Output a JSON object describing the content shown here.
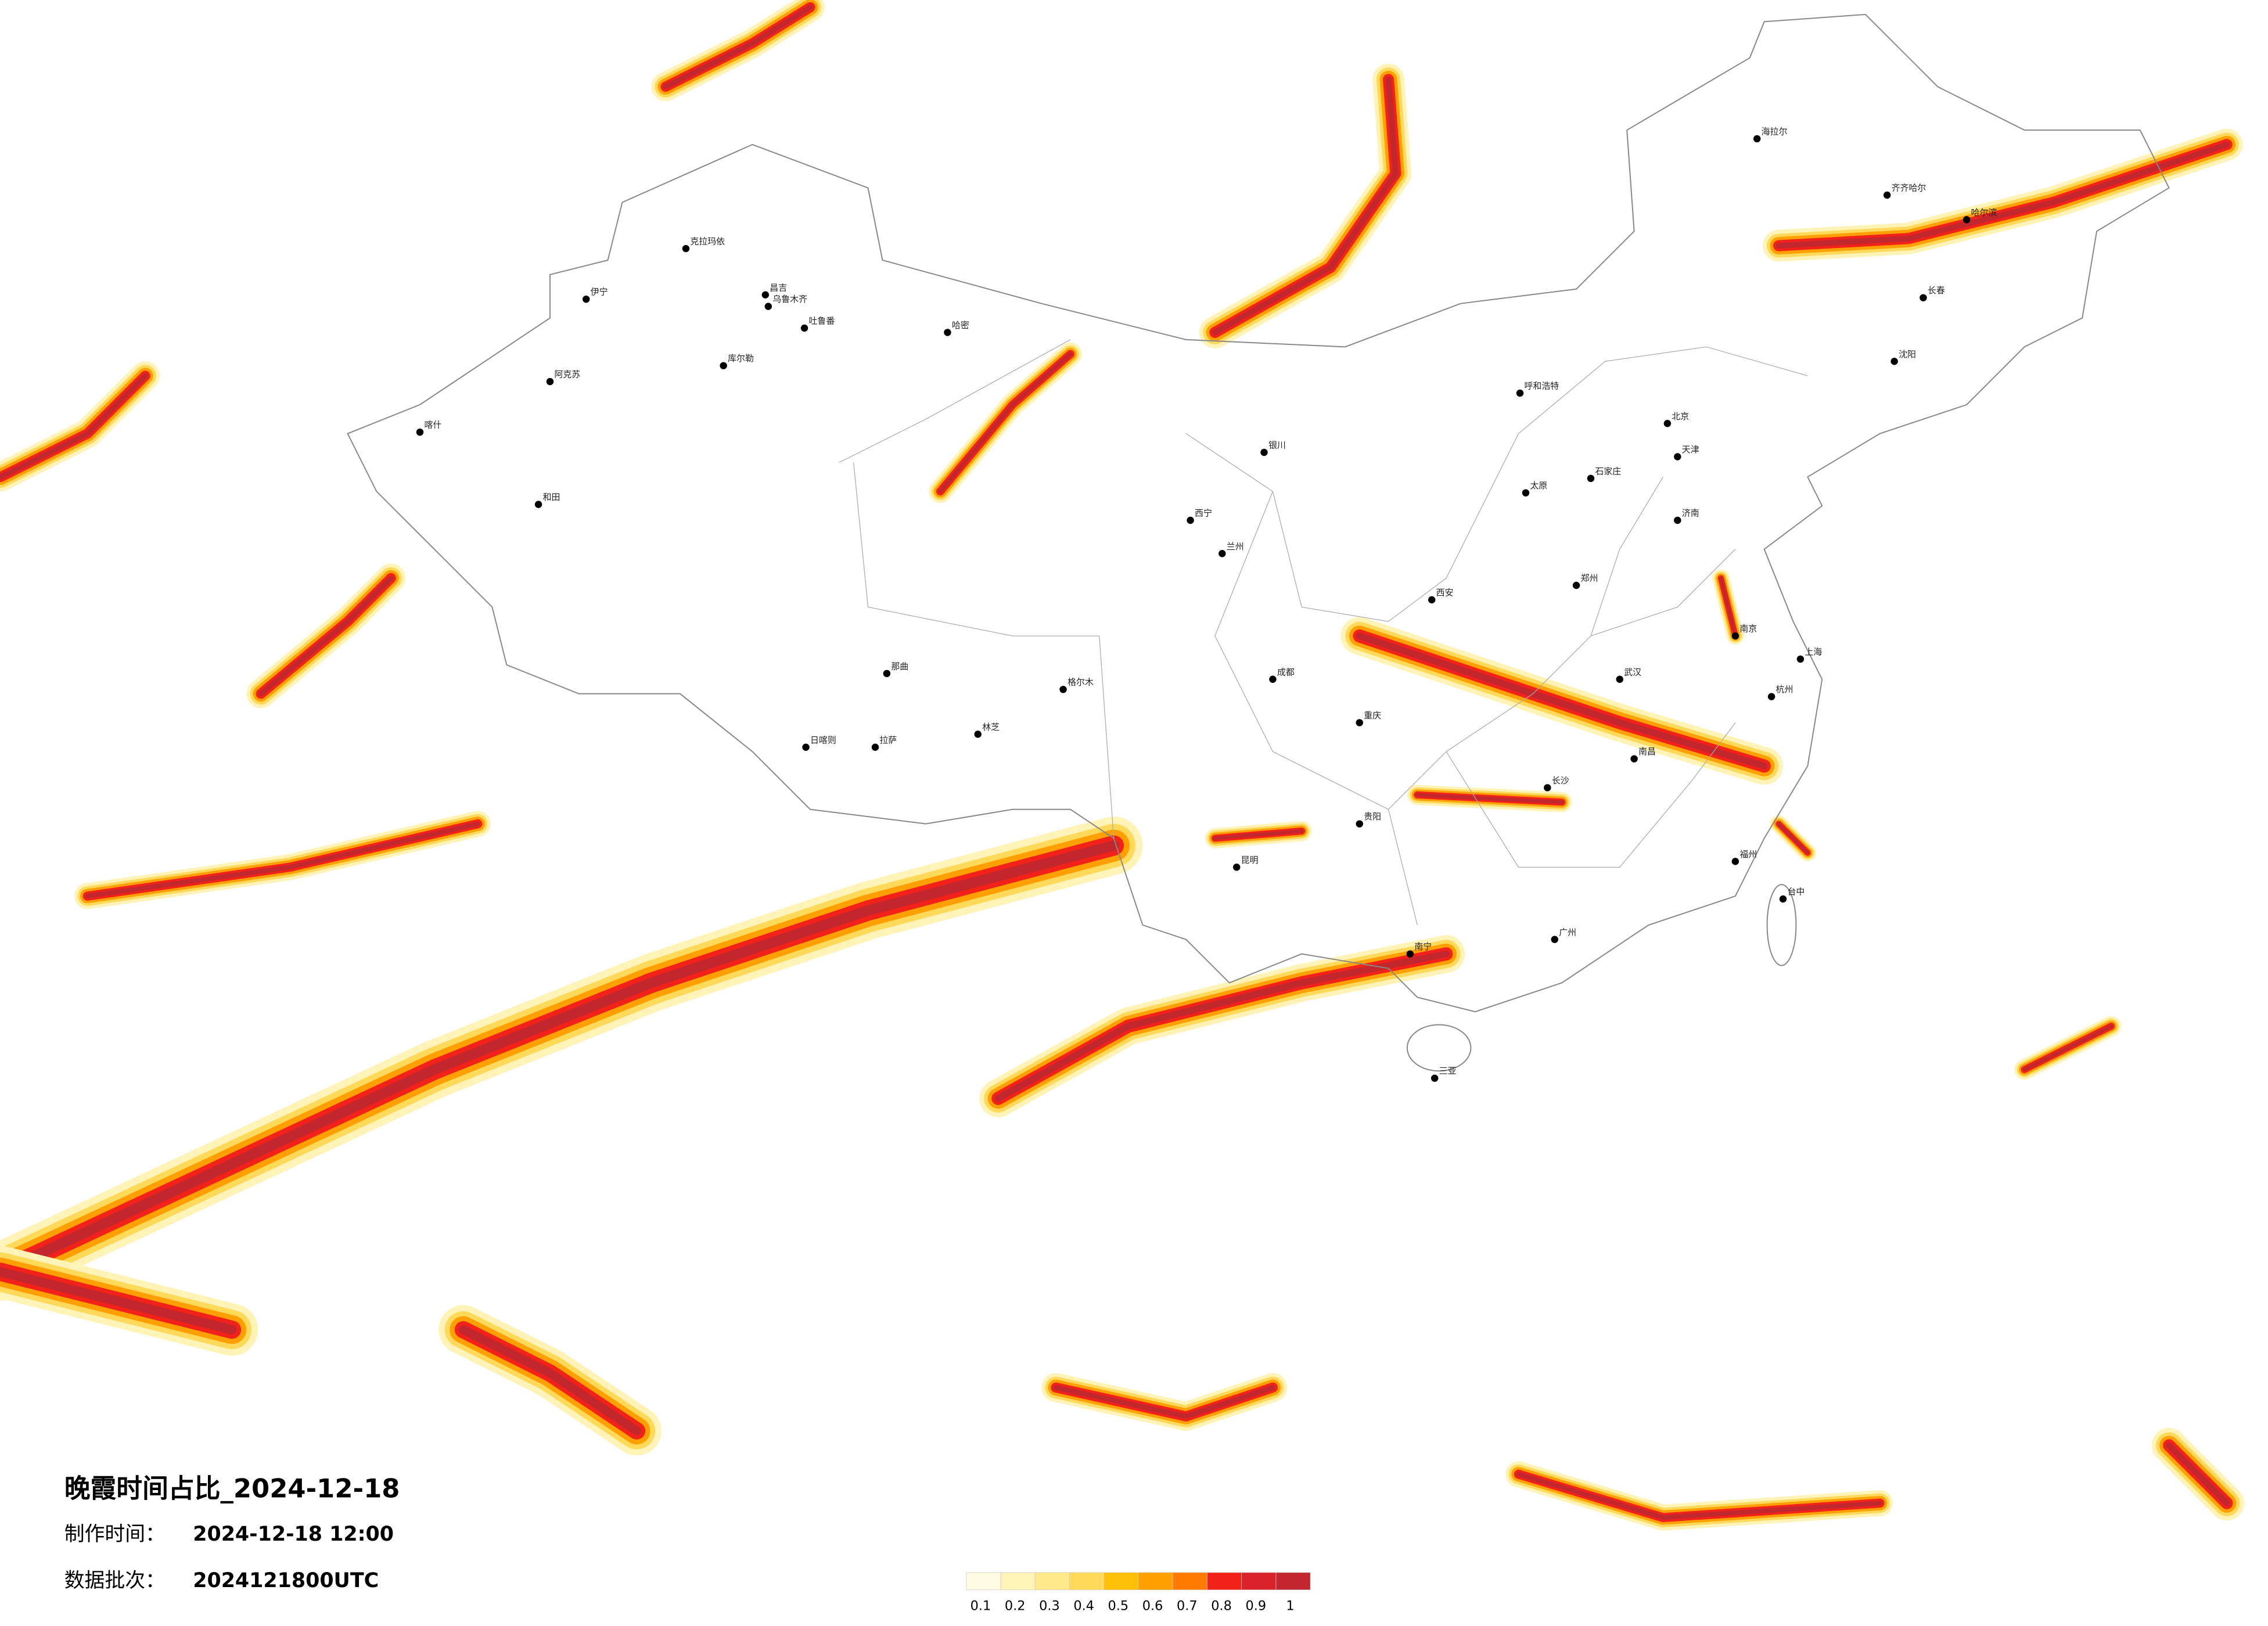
{
  "header": {
    "title": "晚霞时间占比_2024-12-18",
    "made_label": "制作时间：",
    "made_value": "2024-12-18 12:00",
    "batch_label": "数据批次：",
    "batch_value": "2024121800UTC"
  },
  "legend": {
    "colors": [
      "#fffbe3",
      "#fff3b8",
      "#ffe98a",
      "#ffd95a",
      "#ffc107",
      "#ffa000",
      "#ff7b00",
      "#f2221a",
      "#d9222b",
      "#c1272d"
    ],
    "ticks": [
      0.1,
      0.2,
      0.3,
      0.4,
      0.5,
      0.6,
      0.7,
      0.8,
      0.9,
      1
    ]
  },
  "cities": [
    "克拉玛依",
    "昌吉",
    "乌鲁木齐",
    "吐鲁番",
    "哈密",
    "伊宁",
    "阿克苏",
    "喀什",
    "和田",
    "库尔勒",
    "那曲",
    "拉萨",
    "日喀则",
    "林芝",
    "格尔木",
    "西宁",
    "兰州",
    "银川",
    "呼和浩特",
    "北京",
    "天津",
    "石家庄",
    "太原",
    "济南",
    "郑州",
    "西安",
    "成都",
    "重庆",
    "武汉",
    "南京",
    "上海",
    "杭州",
    "长沙",
    "南昌",
    "福州",
    "广州",
    "南宁",
    "贵阳",
    "昆明",
    "三亚",
    "哈尔滨",
    "长春",
    "沈阳",
    "海拉尔",
    "齐齐哈尔",
    "台中"
  ]
}
